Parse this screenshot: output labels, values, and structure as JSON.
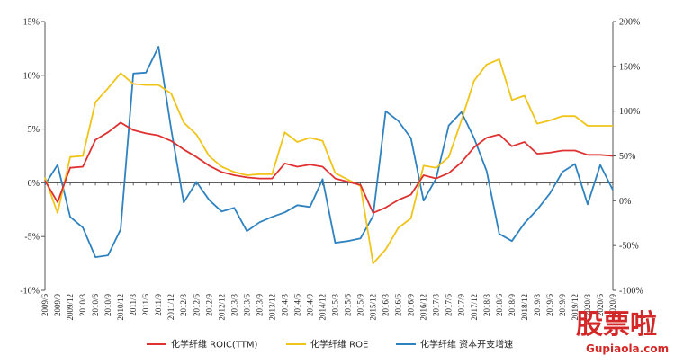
{
  "chart_data": {
    "type": "line",
    "categories": [
      "2009/6",
      "2009/9",
      "2009/12",
      "2010/3",
      "2010/6",
      "2010/9",
      "2010/12",
      "2011/3",
      "2011/6",
      "2011/9",
      "2011/12",
      "2012/3",
      "2012/6",
      "2012/9",
      "2012/12",
      "2013/3",
      "2013/6",
      "2013/9",
      "2013/12",
      "2014/3",
      "2014/6",
      "2014/9",
      "2014/12",
      "2015/3",
      "2015/6",
      "2015/9",
      "2015/12",
      "2016/3",
      "2016/6",
      "2016/9",
      "2016/12",
      "2017/3",
      "2017/6",
      "2017/9",
      "2017/12",
      "2018/3",
      "2018/6",
      "2018/9",
      "2018/12",
      "2019/3",
      "2019/6",
      "2019/9",
      "2019/12",
      "2020/3",
      "2020/6",
      "2020/9"
    ],
    "y_left": {
      "ticks": [
        15,
        10,
        5,
        0,
        -5,
        -10
      ],
      "tick_labels": [
        "15%",
        "10%",
        "5%",
        "0%",
        "-5%",
        "-10%"
      ],
      "ylim": [
        -10,
        15
      ]
    },
    "y_right": {
      "ticks": [
        200,
        150,
        100,
        50,
        0,
        -50,
        -100
      ],
      "tick_labels": [
        "200%",
        "150%",
        "100%",
        "50%",
        "0%",
        "-50%",
        "-100%"
      ],
      "ylim": [
        -100,
        200
      ]
    },
    "grid": false,
    "legend_position": "bottom",
    "series": [
      {
        "name": "化学纤维 ROIC(TTM)",
        "axis": "left",
        "color": "#e03131",
        "values": [
          0.2,
          -1.8,
          1.4,
          1.5,
          4.0,
          4.7,
          5.6,
          4.9,
          4.6,
          4.4,
          3.9,
          3.1,
          2.4,
          1.6,
          1.0,
          0.7,
          0.5,
          0.4,
          0.4,
          1.8,
          1.5,
          1.7,
          1.5,
          0.4,
          0.1,
          -0.2,
          -2.8,
          -2.3,
          -1.6,
          -1.1,
          0.7,
          0.4,
          0.9,
          1.9,
          3.3,
          4.2,
          4.5,
          3.4,
          3.8,
          2.7,
          2.8,
          3.0,
          3.0,
          2.6,
          2.6,
          2.5
        ]
      },
      {
        "name": "化学纤维 ROE",
        "axis": "left",
        "color": "#f0c419",
        "values": [
          0.5,
          -2.8,
          2.4,
          2.5,
          7.5,
          8.8,
          10.2,
          9.2,
          9.1,
          9.1,
          8.3,
          5.6,
          4.5,
          2.5,
          1.5,
          1.0,
          0.7,
          0.8,
          0.8,
          4.7,
          3.8,
          4.2,
          3.9,
          0.9,
          0.3,
          -0.3,
          -7.5,
          -6.2,
          -4.2,
          -3.3,
          1.6,
          1.4,
          2.4,
          5.8,
          9.5,
          11.0,
          11.5,
          7.7,
          8.1,
          5.5,
          5.8,
          6.2,
          6.2,
          5.3,
          5.3,
          5.3
        ]
      },
      {
        "name": "化学纤维 资本开支增速",
        "axis": "right",
        "color": "#2f82c0",
        "values": [
          18,
          40,
          -18,
          -30,
          -63,
          -61,
          -32,
          142,
          143,
          172,
          80,
          -2,
          21,
          1,
          -12,
          -8,
          -34,
          -24,
          -18,
          -13,
          -5,
          -7,
          24,
          -47,
          -45,
          -42,
          -17,
          100,
          89,
          70,
          0,
          25,
          84,
          99,
          70,
          33,
          -37,
          -45,
          -25,
          -10,
          8,
          32,
          41,
          -4,
          40,
          12
        ]
      }
    ]
  },
  "watermark": {
    "main": "股票啦",
    "sub": "Gupiaola.com"
  }
}
